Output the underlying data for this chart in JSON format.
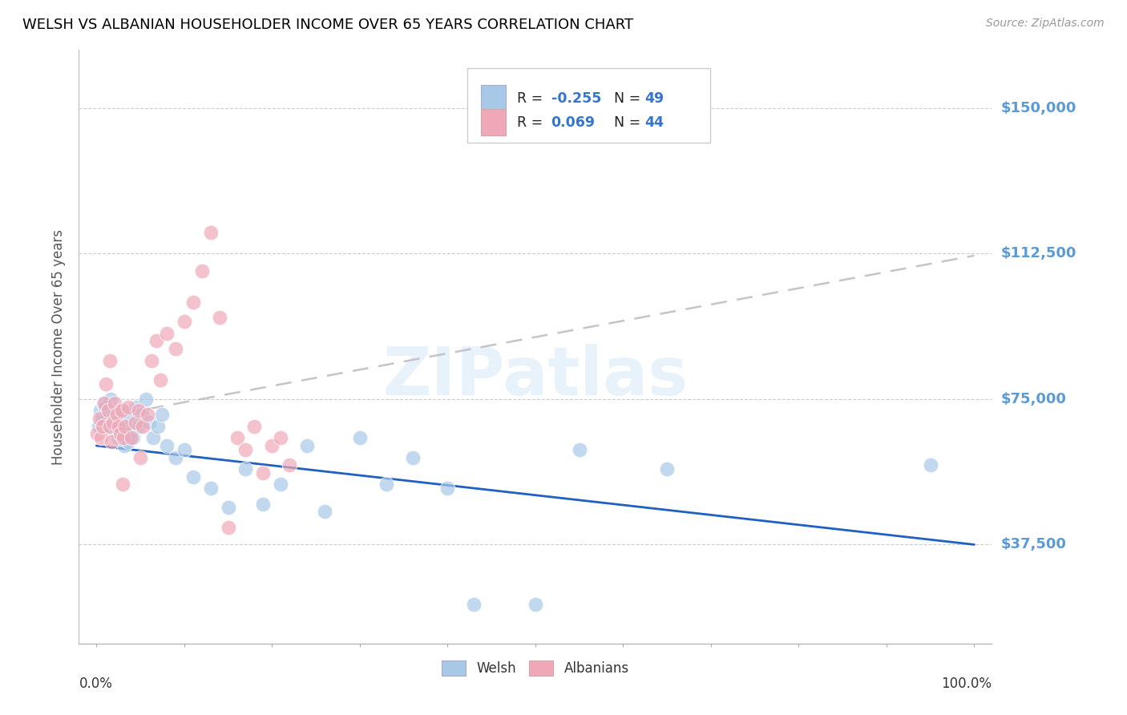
{
  "title": "WELSH VS ALBANIAN HOUSEHOLDER INCOME OVER 65 YEARS CORRELATION CHART",
  "source": "Source: ZipAtlas.com",
  "ylabel": "Householder Income Over 65 years",
  "watermark": "ZIPatlas",
  "welsh_R": "-0.255",
  "welsh_N": "49",
  "albanian_R": "0.069",
  "albanian_N": "44",
  "y_ticks": [
    37500,
    75000,
    112500,
    150000
  ],
  "y_tick_labels": [
    "$37,500",
    "$75,000",
    "$112,500",
    "$150,000"
  ],
  "ylim": [
    12000,
    165000
  ],
  "xlim": [
    -0.02,
    1.02
  ],
  "welsh_color": "#a8c8e8",
  "albanian_color": "#f0a8b8",
  "welsh_line_color": "#2060c0",
  "albanian_line_color": "#c8a8b0",
  "grid_color": "#cccccc",
  "right_label_color": "#5b9bd5",
  "title_color": "#000000",
  "welsh_x": [
    0.002,
    0.004,
    0.006,
    0.008,
    0.01,
    0.012,
    0.014,
    0.016,
    0.018,
    0.02,
    0.022,
    0.024,
    0.026,
    0.028,
    0.03,
    0.032,
    0.034,
    0.036,
    0.038,
    0.04,
    0.042,
    0.045,
    0.048,
    0.052,
    0.056,
    0.06,
    0.065,
    0.07,
    0.075,
    0.08,
    0.09,
    0.1,
    0.11,
    0.13,
    0.15,
    0.17,
    0.19,
    0.21,
    0.24,
    0.26,
    0.3,
    0.33,
    0.36,
    0.4,
    0.43,
    0.5,
    0.55,
    0.65,
    0.95
  ],
  "welsh_y": [
    68000,
    72000,
    70000,
    74000,
    73000,
    71000,
    69000,
    75000,
    67000,
    71000,
    68000,
    65000,
    69000,
    66000,
    72000,
    63000,
    68000,
    64000,
    70000,
    67000,
    65000,
    73000,
    68000,
    71000,
    75000,
    69000,
    65000,
    68000,
    71000,
    63000,
    60000,
    62000,
    55000,
    52000,
    47000,
    57000,
    48000,
    53000,
    63000,
    46000,
    65000,
    53000,
    60000,
    52000,
    22000,
    22000,
    62000,
    57000,
    58000
  ],
  "albanian_x": [
    0.001,
    0.003,
    0.005,
    0.007,
    0.009,
    0.011,
    0.013,
    0.015,
    0.017,
    0.019,
    0.021,
    0.023,
    0.025,
    0.027,
    0.029,
    0.031,
    0.033,
    0.036,
    0.04,
    0.044,
    0.048,
    0.053,
    0.058,
    0.063,
    0.068,
    0.073,
    0.08,
    0.09,
    0.1,
    0.11,
    0.12,
    0.13,
    0.14,
    0.15,
    0.16,
    0.17,
    0.18,
    0.19,
    0.2,
    0.21,
    0.22,
    0.05,
    0.03,
    0.015
  ],
  "albanian_y": [
    66000,
    70000,
    65000,
    68000,
    74000,
    79000,
    72000,
    68000,
    64000,
    69000,
    74000,
    71000,
    68000,
    66000,
    72000,
    65000,
    68000,
    73000,
    65000,
    69000,
    72000,
    68000,
    71000,
    85000,
    90000,
    80000,
    92000,
    88000,
    95000,
    100000,
    108000,
    118000,
    96000,
    42000,
    65000,
    62000,
    68000,
    56000,
    63000,
    65000,
    58000,
    60000,
    53000,
    85000
  ]
}
